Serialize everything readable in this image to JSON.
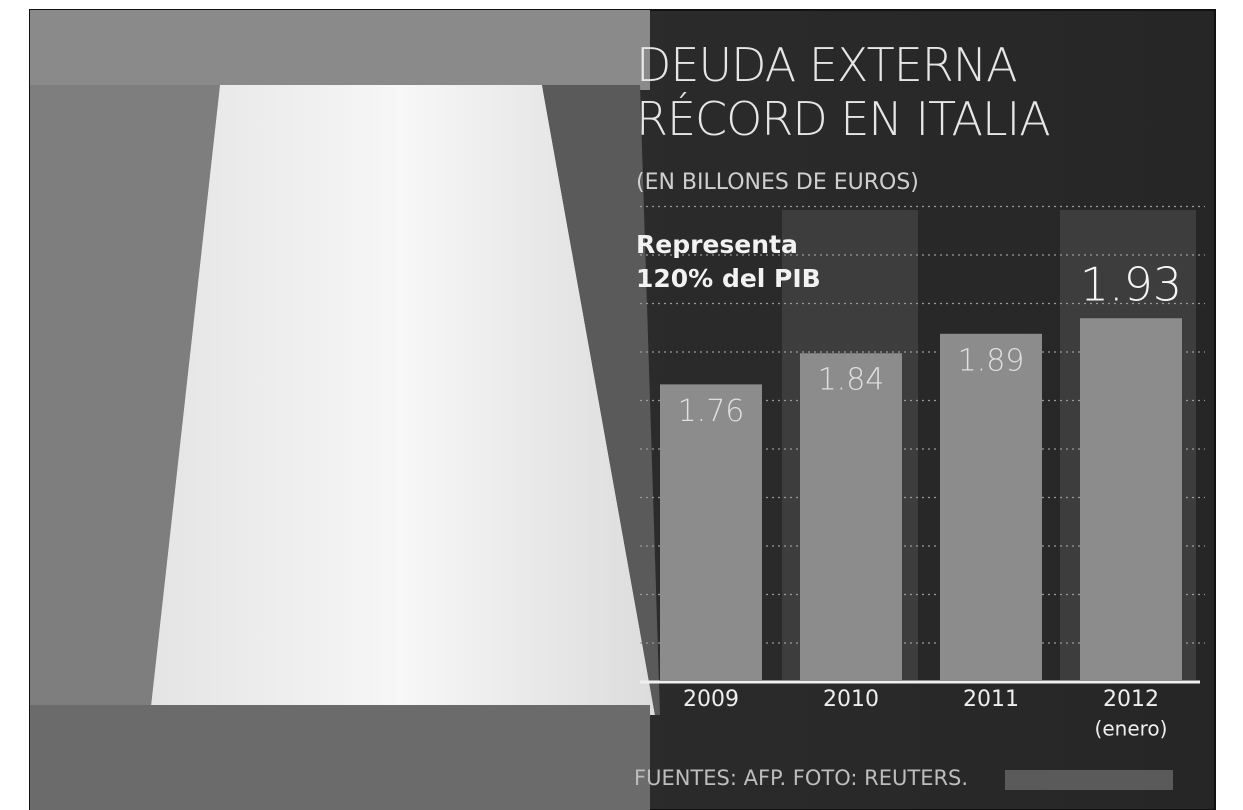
{
  "chart_data": {
    "type": "bar",
    "title": "DEUDA EXTERNA RÉCORD EN ITALIA",
    "subtitle": "(EN BILLONES DE EUROS)",
    "annotation": "Representa 120% del PIB",
    "categories": [
      "2009",
      "2010",
      "2011",
      "2012"
    ],
    "category_sublabels": [
      null,
      null,
      null,
      "(enero)"
    ],
    "values": [
      1.76,
      1.84,
      1.89,
      1.93
    ],
    "color": "#8c8c8c",
    "ylim": [
      1,
      2
    ],
    "grid": true,
    "source": "FUENTES: AFP. FOTO: REUTERS."
  }
}
